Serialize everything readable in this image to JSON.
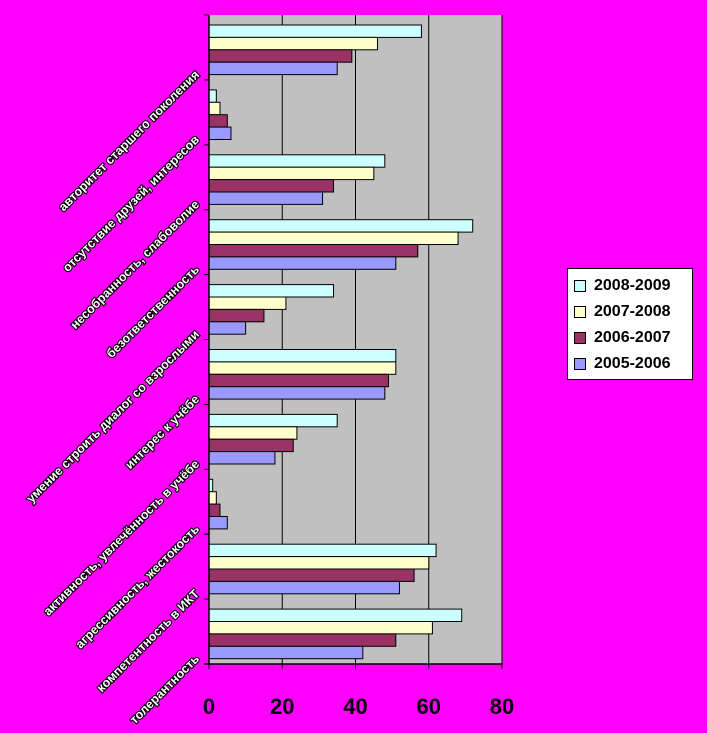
{
  "chart_data": {
    "type": "bar",
    "orientation": "horizontal",
    "categories": [
      "авторитет старшего поколения",
      "отсутствие друзей, интересов",
      "несобранность, слабоволие",
      "безответственность",
      "умение строить диалог со взрослыми",
      "интерес к учёбе",
      "активность, увлечённость в учёбе",
      "агрессивность, жестокость",
      "компетентность в ИКТ",
      "толерантность"
    ],
    "series": [
      {
        "name": "2008-2009",
        "color": "#CCFFFF",
        "values": [
          58,
          2,
          48,
          72,
          34,
          51,
          35,
          1,
          62,
          69
        ]
      },
      {
        "name": "2007-2008",
        "color": "#FFFFCC",
        "values": [
          46,
          3,
          45,
          68,
          21,
          51,
          24,
          2,
          60,
          61
        ]
      },
      {
        "name": "2006-2007",
        "color": "#993366",
        "values": [
          39,
          5,
          34,
          57,
          15,
          49,
          23,
          3,
          56,
          51
        ]
      },
      {
        "name": "2005-2006",
        "color": "#9999FF",
        "values": [
          35,
          6,
          31,
          51,
          10,
          48,
          18,
          5,
          52,
          42
        ]
      }
    ],
    "xlim": [
      0,
      80
    ],
    "xticks": [
      0,
      20,
      40,
      60,
      80
    ],
    "grid": true,
    "plot_background": "#C0C0C0",
    "legend_position": "right"
  }
}
